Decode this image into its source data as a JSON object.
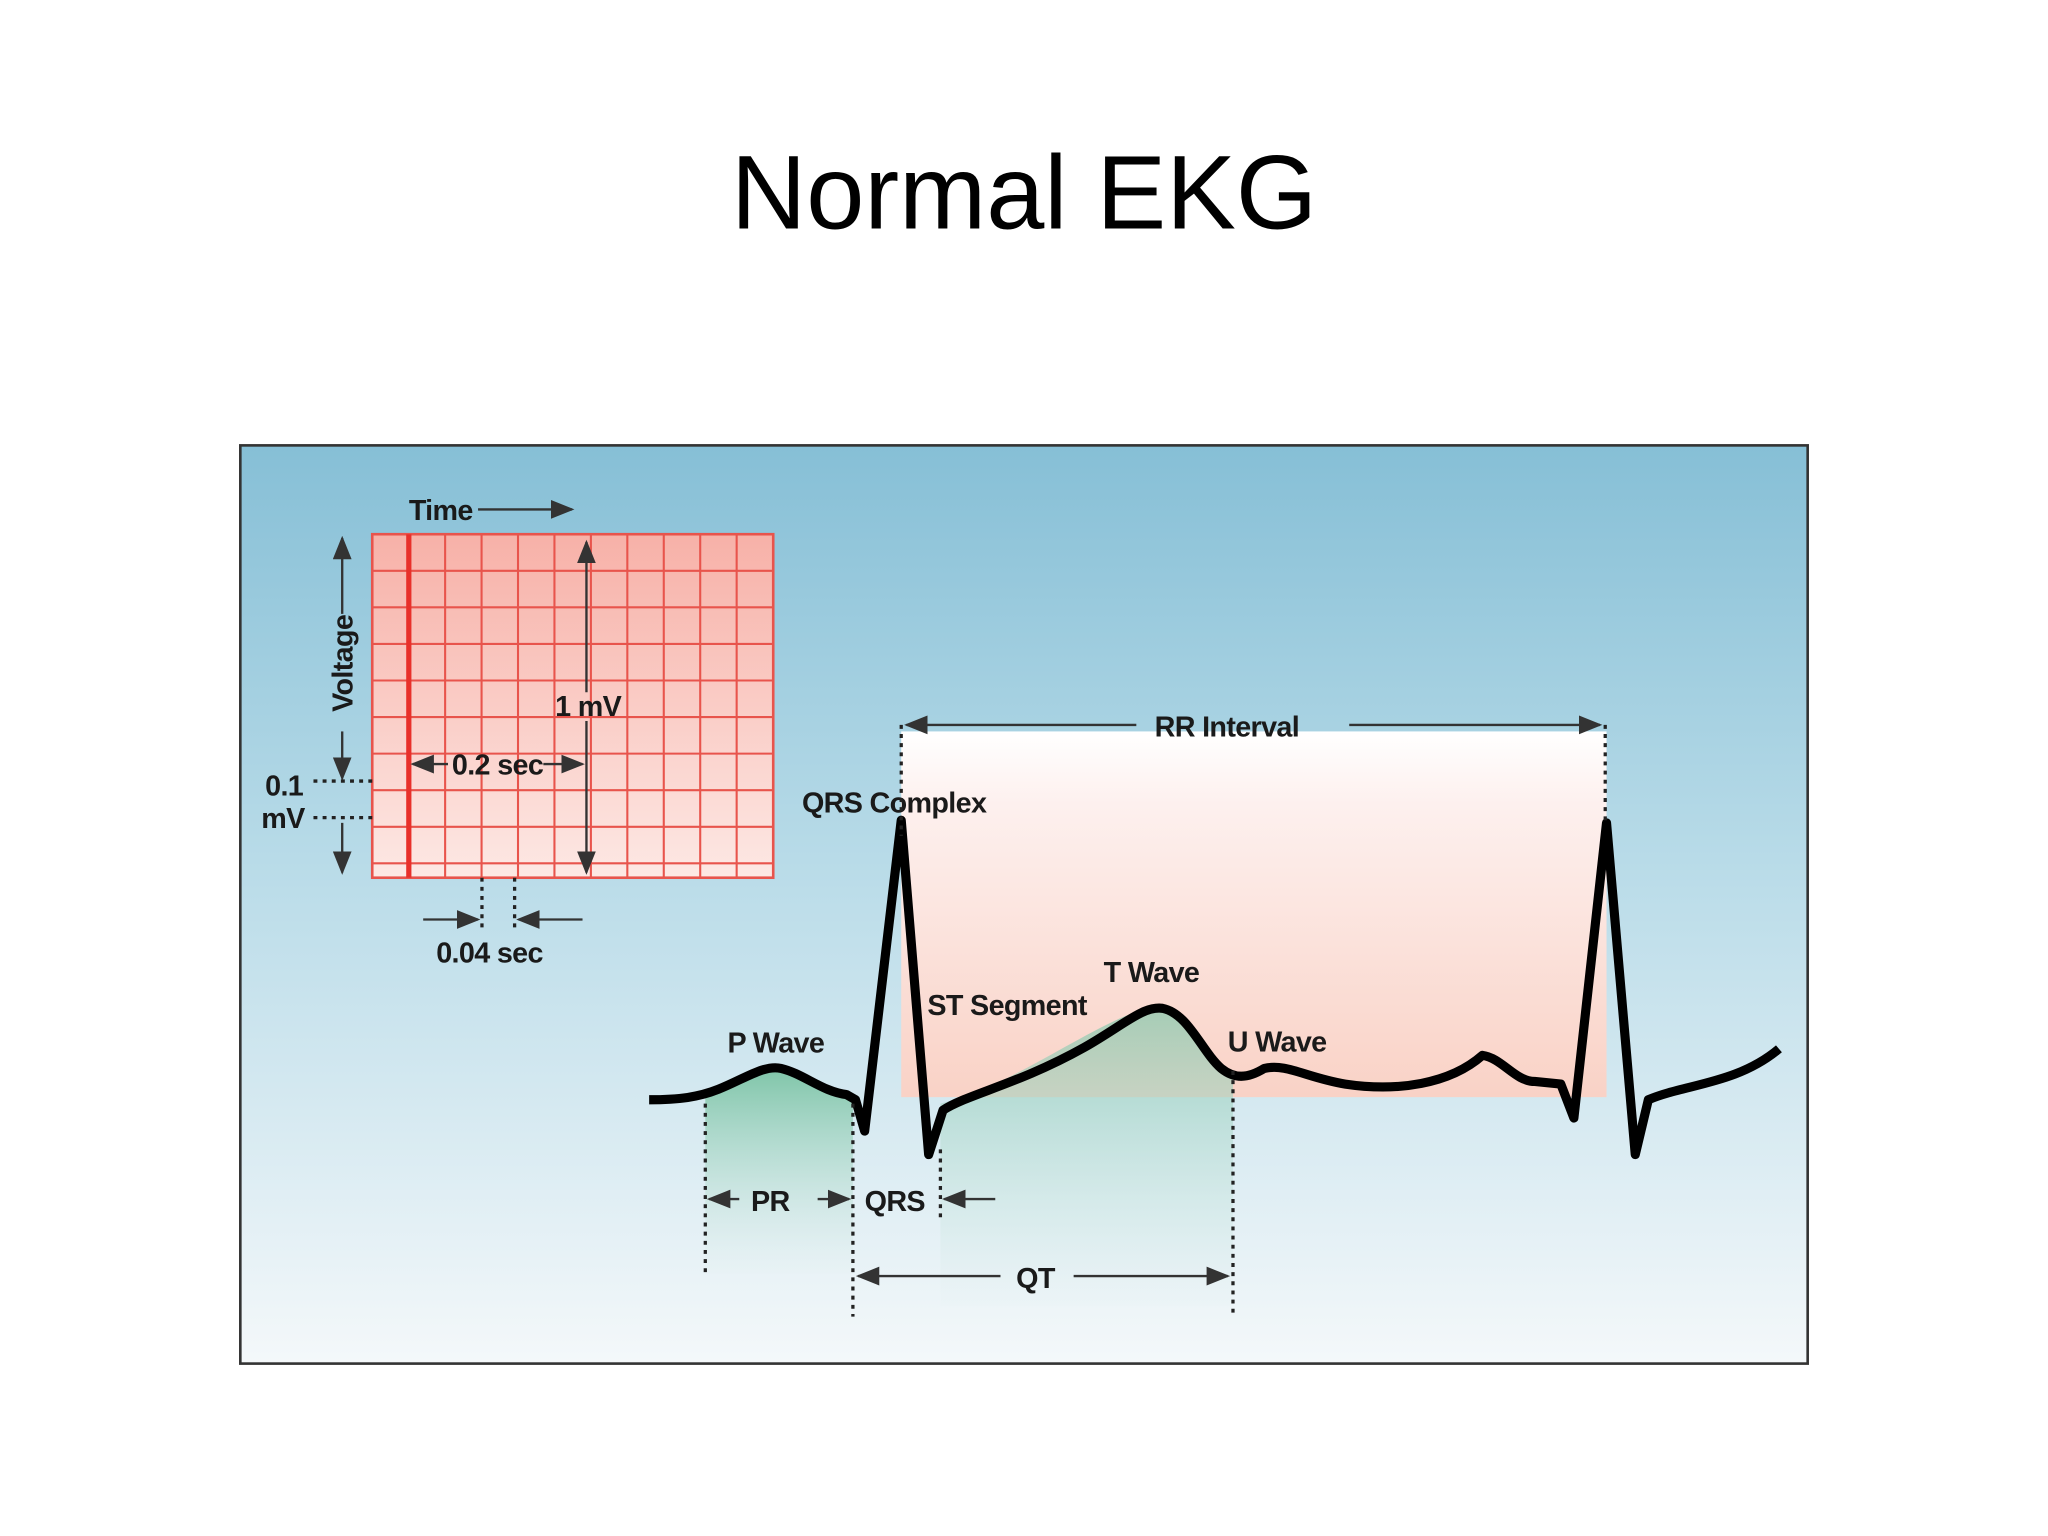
{
  "title": "Normal EKG",
  "grid": {
    "time": "Time",
    "voltage": "Voltage",
    "amplitude": "1 mV",
    "duration": "0.2 sec",
    "small_voltage": [
      "0.1",
      "mV"
    ],
    "small_time": "0.04 sec"
  },
  "waveform": {
    "p_wave": "P Wave",
    "qrs_complex": "QRS Complex",
    "st_segment": "ST Segment",
    "t_wave": "T Wave",
    "u_wave": "U Wave"
  },
  "intervals": {
    "rr": "RR Interval",
    "pr": "PR",
    "qrs": "QRS",
    "qt": "QT"
  }
}
